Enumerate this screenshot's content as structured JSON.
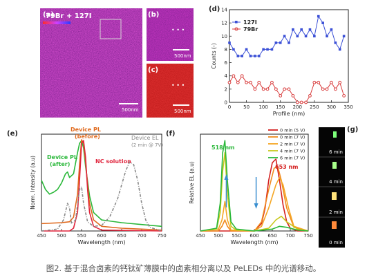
{
  "caption": "图2. 基于混合卤素的钙钛矿薄膜中的卤素相分离以及 PeLEDs 中的光谱移动。",
  "colors": {
    "grid_blue": "#3a4fd6",
    "grid_red": "#d83a3a",
    "pl_after": "#2ab83a",
    "pl_before": "#e06a1e",
    "nc_solution": "#e0243c",
    "el_device": "#888888"
  },
  "panels": {
    "a": {
      "label": "(a)",
      "tag_br": "79Br",
      "tag_plus": " + ",
      "tag_i": "127I",
      "scale": "500nm"
    },
    "b": {
      "label": "(b)",
      "scale": "500nm"
    },
    "c": {
      "label": "(c)",
      "scale": "500nm"
    },
    "g": {
      "label": "(g)",
      "times": [
        "6 min",
        "4 min",
        "2 min",
        "0 min"
      ]
    }
  },
  "chart_data": [
    {
      "id": "d",
      "label": "(d)",
      "type": "line",
      "xlabel": "Profile (nm)",
      "ylabel": "Counts (-)",
      "xlim": [
        0,
        350
      ],
      "ylim": [
        0,
        14
      ],
      "xticks": [
        0,
        50,
        100,
        150,
        200,
        250,
        300,
        350
      ],
      "yticks": [
        0,
        2,
        4,
        6,
        8,
        10,
        12,
        14
      ],
      "legend": "top-left",
      "series": [
        {
          "name": "127I",
          "marker": "square",
          "color": "#3a4fd6",
          "x": [
            0,
            12,
            25,
            37,
            50,
            62,
            75,
            87,
            100,
            112,
            125,
            137,
            150,
            162,
            175,
            187,
            200,
            212,
            225,
            237,
            250,
            262,
            275,
            287,
            300,
            312,
            325,
            337
          ],
          "y": [
            9,
            8,
            7,
            7,
            8,
            7,
            7,
            7,
            8,
            8,
            8,
            9,
            9,
            10,
            9,
            11,
            10,
            11,
            10,
            11,
            10,
            13,
            12,
            10,
            11,
            9,
            8,
            10
          ]
        },
        {
          "name": "79Br",
          "marker": "circle",
          "color": "#d83a3a",
          "x": [
            0,
            12,
            25,
            37,
            50,
            62,
            75,
            87,
            100,
            112,
            125,
            137,
            150,
            162,
            175,
            187,
            200,
            212,
            225,
            237,
            250,
            262,
            275,
            287,
            300,
            312,
            325,
            337
          ],
          "y": [
            3,
            4,
            3,
            4,
            3,
            3,
            2,
            3,
            2,
            2,
            3,
            2,
            1,
            2,
            2,
            1,
            0,
            0,
            0,
            1,
            3,
            3,
            2,
            2,
            3,
            2,
            3,
            1
          ]
        }
      ]
    },
    {
      "id": "e",
      "label": "(e)",
      "type": "line",
      "xlabel": "Wavelength (nm)",
      "ylabel": "Norm. Intensity (a.u)",
      "xlim": [
        450,
        750
      ],
      "ylim": [
        0,
        1.05
      ],
      "xticks": [
        450,
        500,
        550,
        600,
        650,
        700,
        750
      ],
      "series": [
        {
          "name": "Device PL (after)",
          "color": "#2ab83a",
          "x": [
            450,
            460,
            470,
            480,
            490,
            500,
            510,
            515,
            520,
            530,
            540,
            545,
            550,
            555,
            560,
            570,
            580,
            600,
            650,
            700,
            750
          ],
          "y": [
            0.55,
            0.45,
            0.4,
            0.42,
            0.45,
            0.52,
            0.62,
            0.64,
            0.58,
            0.62,
            0.85,
            0.95,
            0.98,
            0.9,
            0.7,
            0.38,
            0.2,
            0.12,
            0.09,
            0.07,
            0.05
          ]
        },
        {
          "name": "Device PL (before)",
          "color": "#e06a1e",
          "x": [
            450,
            500,
            520,
            530,
            540,
            545,
            550,
            555,
            560,
            565,
            570,
            580,
            600,
            650,
            700,
            750
          ],
          "y": [
            0.08,
            0.09,
            0.1,
            0.15,
            0.4,
            0.72,
            0.99,
            0.95,
            0.75,
            0.5,
            0.3,
            0.12,
            0.05,
            0.03,
            0.02,
            0.01
          ]
        },
        {
          "name": "NC solution",
          "color": "#e0243c",
          "x": [
            450,
            520,
            530,
            540,
            545,
            550,
            555,
            560,
            565,
            570,
            580,
            600,
            750
          ],
          "y": [
            0.0,
            0.0,
            0.03,
            0.2,
            0.55,
            0.95,
            0.98,
            0.8,
            0.45,
            0.2,
            0.05,
            0.01,
            0.0
          ]
        },
        {
          "name": "Device EL (2 min @ 7V)",
          "color": "#888888",
          "dash": true,
          "x": [
            450,
            490,
            505,
            515,
            520,
            525,
            535,
            545,
            550,
            555,
            565,
            580,
            600,
            620,
            640,
            660,
            670,
            680,
            690,
            700,
            710,
            720,
            750
          ],
          "y": [
            0.0,
            0.02,
            0.12,
            0.3,
            0.25,
            0.08,
            0.12,
            0.45,
            0.48,
            0.3,
            0.1,
            0.05,
            0.06,
            0.15,
            0.35,
            0.65,
            0.75,
            0.72,
            0.55,
            0.3,
            0.12,
            0.04,
            0.0
          ]
        }
      ],
      "annotations": [
        {
          "text": "Device PL",
          "color": "#2ab83a"
        },
        {
          "text": "(after)",
          "color": "#2ab83a"
        },
        {
          "text": "Device PL",
          "color": "#e06a1e"
        },
        {
          "text": "(before)",
          "color": "#e06a1e"
        },
        {
          "text": "NC solution",
          "color": "#e0243c"
        },
        {
          "text": "Device EL",
          "color": "#888888"
        },
        {
          "text": "(2 min @ 7V)",
          "color": "#888888"
        }
      ]
    },
    {
      "id": "f",
      "label": "(f)",
      "type": "line",
      "xlabel": "Wavelength (nm)",
      "ylabel": "Relative EL (a.u)",
      "xlim": [
        450,
        750
      ],
      "ylim": [
        0,
        1.05
      ],
      "xticks": [
        450,
        500,
        550,
        600,
        650,
        700,
        750
      ],
      "legend": "top-right",
      "series": [
        {
          "name": "0 min (5 V)",
          "color": "#d42020",
          "x": [
            450,
            600,
            620,
            630,
            640,
            650,
            660,
            670,
            680,
            690,
            700,
            720,
            750
          ],
          "y": [
            0.0,
            0.0,
            0.08,
            0.25,
            0.55,
            0.74,
            0.78,
            0.55,
            0.28,
            0.1,
            0.03,
            0.0,
            0.0
          ]
        },
        {
          "name": "0 min (7 V)",
          "color": "#f08a1e",
          "x": [
            450,
            500,
            510,
            518,
            525,
            535,
            600,
            620,
            640,
            655,
            665,
            675,
            690,
            710,
            750
          ],
          "y": [
            0.0,
            0.0,
            0.05,
            0.12,
            0.05,
            0.0,
            0.0,
            0.1,
            0.45,
            0.68,
            0.7,
            0.55,
            0.25,
            0.04,
            0.0
          ]
        },
        {
          "name": "2 min (7 V)",
          "color": "#f5a623",
          "x": [
            450,
            500,
            510,
            518,
            525,
            535,
            600,
            620,
            640,
            660,
            670,
            680,
            695,
            710,
            750
          ],
          "y": [
            0.0,
            0.02,
            0.12,
            0.32,
            0.12,
            0.01,
            0.0,
            0.05,
            0.25,
            0.5,
            0.58,
            0.5,
            0.25,
            0.05,
            0.0
          ]
        },
        {
          "name": "4 min (7 V)",
          "color": "#c8c81e",
          "x": [
            450,
            495,
            505,
            512,
            518,
            525,
            535,
            550,
            600,
            640,
            660,
            675,
            690,
            720,
            750
          ],
          "y": [
            0.0,
            0.02,
            0.2,
            0.65,
            0.85,
            0.4,
            0.05,
            0.01,
            0.0,
            0.03,
            0.12,
            0.16,
            0.1,
            0.02,
            0.0
          ]
        },
        {
          "name": "6 min (7 V)",
          "color": "#2ab83a",
          "x": [
            450,
            495,
            505,
            512,
            518,
            525,
            535,
            550,
            600,
            650,
            670,
            690,
            720,
            750
          ],
          "y": [
            0.0,
            0.03,
            0.3,
            0.85,
            0.98,
            0.55,
            0.1,
            0.02,
            0.0,
            0.02,
            0.05,
            0.04,
            0.01,
            0.0
          ]
        }
      ],
      "annotations": [
        {
          "text": "518 nm",
          "color": "#2ab83a"
        },
        {
          "text": "653 nm",
          "color": "#d42020"
        }
      ]
    }
  ]
}
